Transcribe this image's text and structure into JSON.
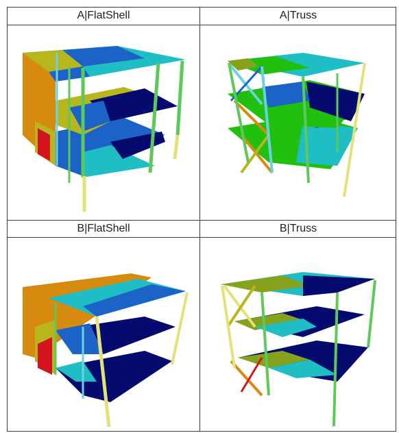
{
  "cells": [
    {
      "title": "A|FlatShell"
    },
    {
      "title": "A|Truss"
    },
    {
      "title": "B|FlatShell"
    },
    {
      "title": "B|Truss"
    }
  ],
  "colors": {
    "orange": "#d68a0e",
    "yellow": "#b7b71d",
    "red": "#d4141e",
    "cyan": "#1fbec4",
    "teal": "#14a8a8",
    "blue": "#1c63c8",
    "navy": "#050a6e",
    "green": "#22c00e",
    "olive": "#86a21c",
    "column_yellow": "#e4e07a",
    "column_green": "#5ec85a",
    "column_cyan": "#6ad0e4"
  }
}
